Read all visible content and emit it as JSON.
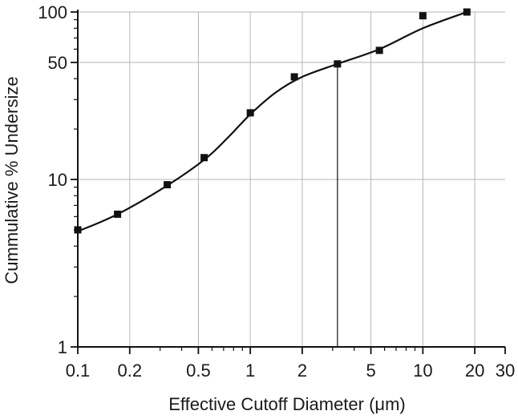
{
  "chart_data": {
    "type": "scatter",
    "xlabel": "Effective Cutoff Diameter (μm)",
    "ylabel": "Cummulative % Undersize",
    "x_scale": "log",
    "y_scale": "log",
    "xlim": [
      0.1,
      30
    ],
    "ylim": [
      1,
      100
    ],
    "x_ticks": [
      0.1,
      0.2,
      0.5,
      1,
      2,
      5,
      10,
      20,
      30
    ],
    "x_tick_labels": [
      "0.1",
      "0.2",
      "0.5",
      "1",
      "2",
      "5",
      "10",
      "20",
      "30"
    ],
    "y_ticks": [
      1,
      10,
      50,
      100
    ],
    "y_tick_labels": [
      "1",
      "10",
      "50",
      "100"
    ],
    "grid": true,
    "series": [
      {
        "marker": "square",
        "x": [
          0.1,
          0.17,
          0.33,
          0.54,
          1.0,
          1.8,
          3.2,
          5.6,
          10,
          18
        ],
        "y": [
          5.0,
          6.2,
          9.3,
          13.5,
          25,
          41,
          49,
          59,
          95,
          100
        ]
      }
    ],
    "fit_curve": {
      "x": [
        0.1,
        0.17,
        0.33,
        0.55,
        0.75,
        1.0,
        1.4,
        2.0,
        3.2,
        5.6,
        10,
        18
      ],
      "y": [
        4.9,
        6.2,
        9.2,
        13.3,
        18,
        24.5,
        33,
        41,
        49,
        60,
        80,
        100
      ]
    },
    "reference_line": {
      "x": 3.2,
      "y": 49
    }
  }
}
